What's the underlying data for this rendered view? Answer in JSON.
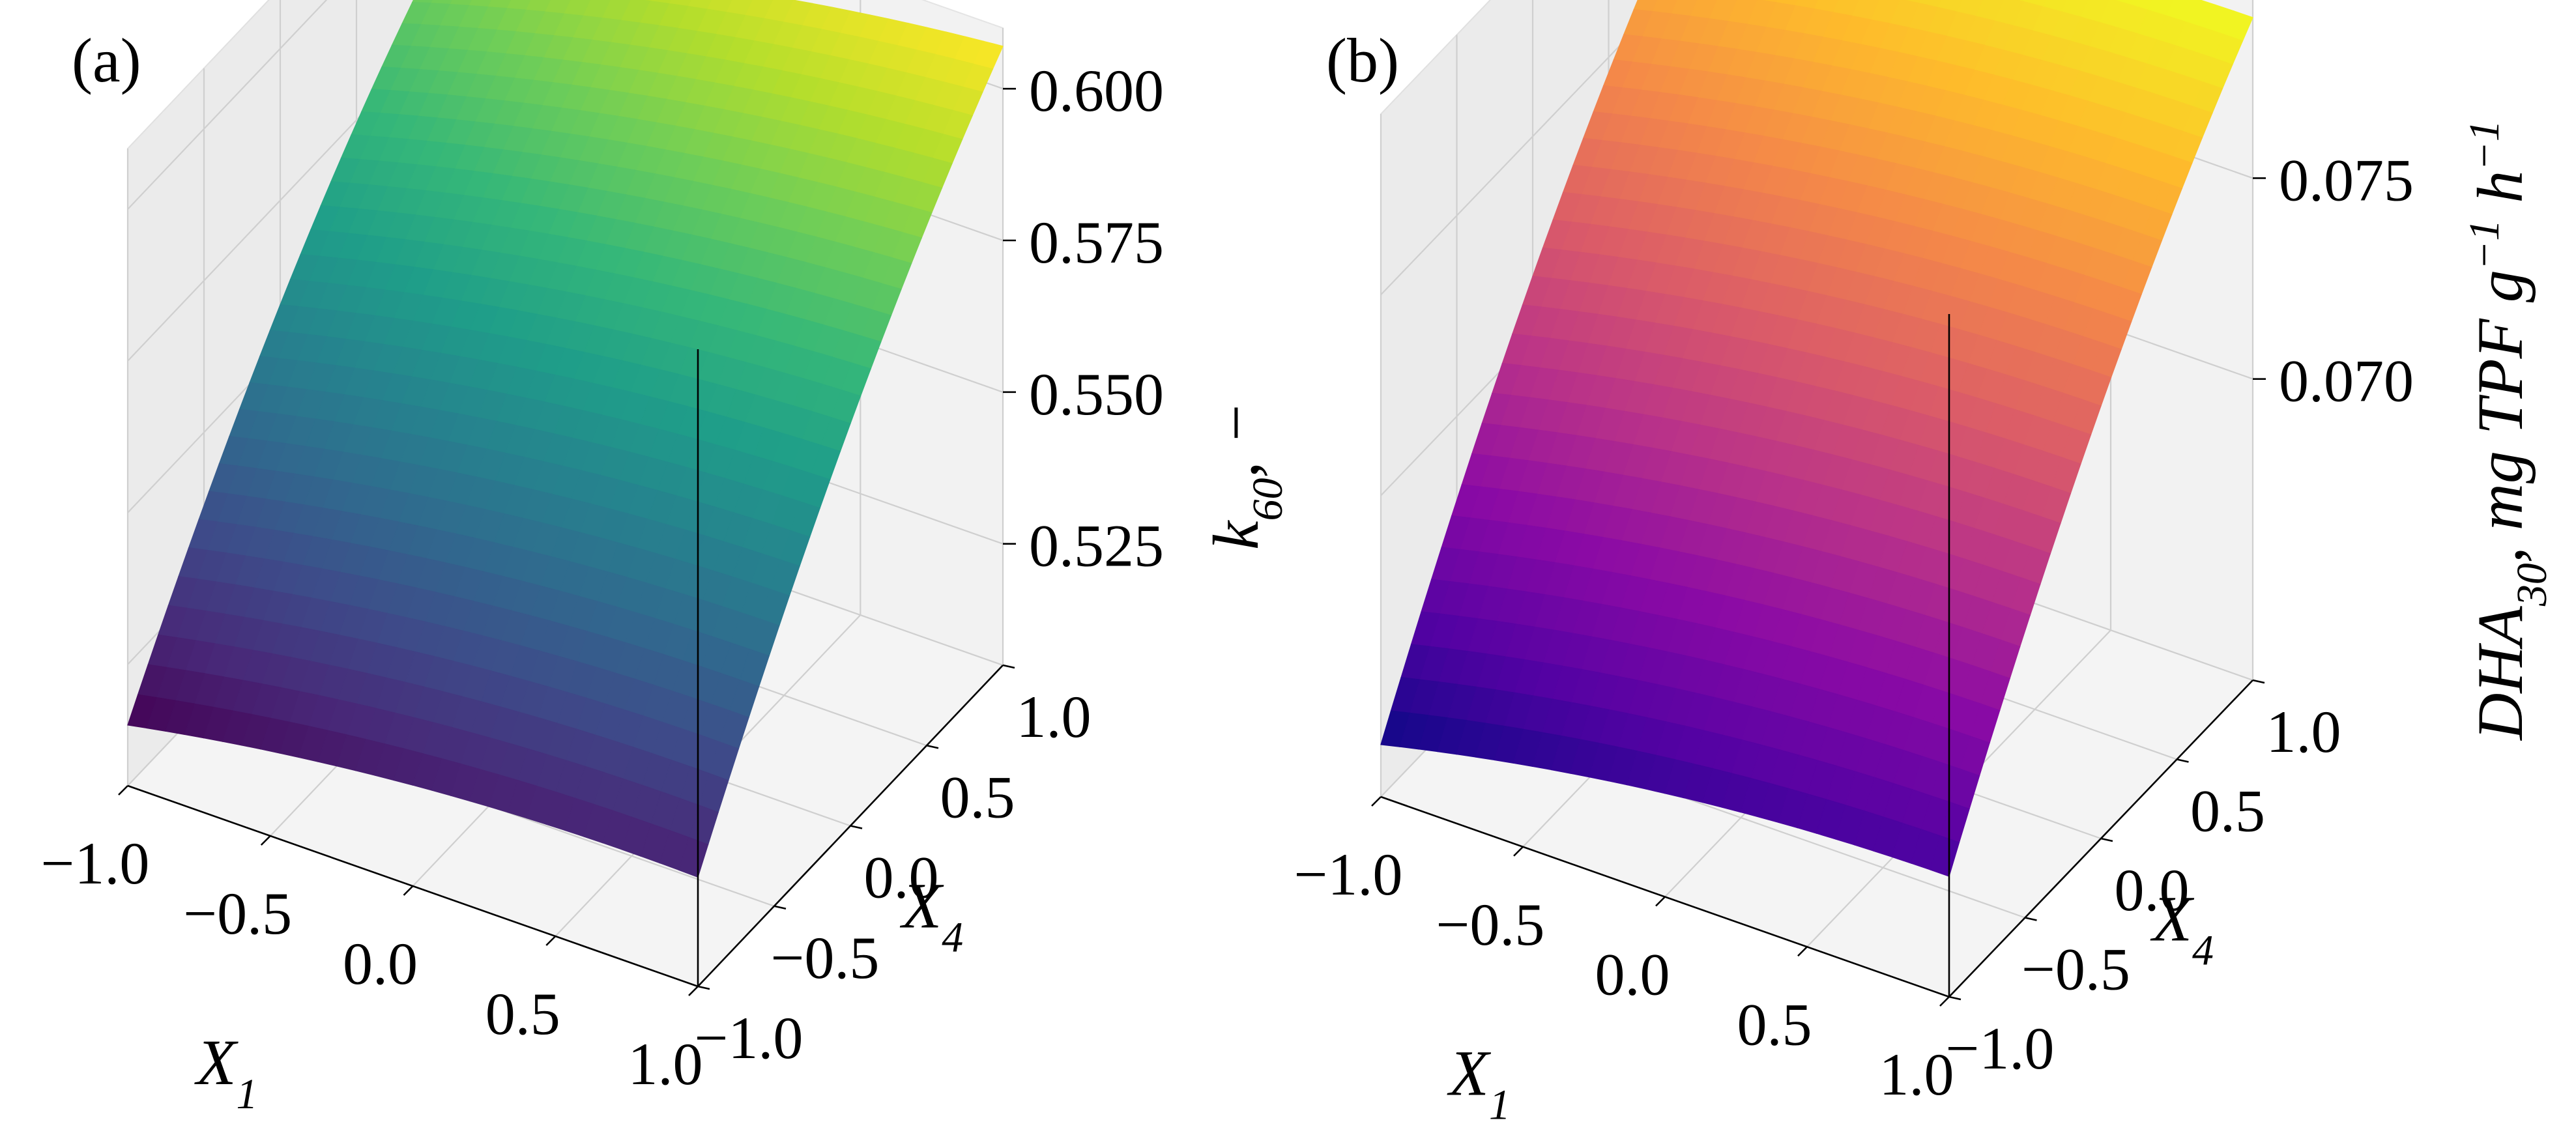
{
  "chart_data": [
    {
      "panel": "(a)",
      "type": "surface3d",
      "colormap": "viridis",
      "x_label": "X₁",
      "y_label": "X₄",
      "z_label": "k₆₀, −",
      "x_range": [
        -1.0,
        1.0
      ],
      "y_range": [
        -1.0,
        1.0
      ],
      "z_range": [
        0.505,
        0.61
      ],
      "x_ticks": [
        "−1.0",
        "−0.5",
        "0.0",
        "0.5",
        "1.0"
      ],
      "y_ticks": [
        "−1.0",
        "−0.5",
        "0.0",
        "0.5",
        "1.0"
      ],
      "z_ticks": [
        "0.525",
        "0.550",
        "0.575",
        "0.600"
      ],
      "z_tick_values": [
        0.525,
        0.55,
        0.575,
        0.6
      ],
      "corners": {
        "x-1_y-1": 0.515,
        "x1_y-1": 0.523,
        "x-1_y1": 0.588,
        "x1_y1": 0.607
      },
      "grid": true
    },
    {
      "panel": "(b)",
      "type": "surface3d",
      "colormap": "plasma",
      "x_label": "X₁",
      "y_label": "X₄",
      "z_label": "DHA₃₀, mg TPF g⁻¹ h⁻¹",
      "x_range": [
        -1.0,
        1.0
      ],
      "y_range": [
        -1.0,
        1.0
      ],
      "z_range": [
        0.0625,
        0.0795
      ],
      "x_ticks": [
        "−1.0",
        "−0.5",
        "0.0",
        "0.5",
        "1.0"
      ],
      "y_ticks": [
        "−1.0",
        "−0.5",
        "0.0",
        "0.5",
        "1.0"
      ],
      "z_ticks": [
        "0.070",
        "0.075"
      ],
      "z_tick_values": [
        0.07,
        0.075
      ],
      "corners": {
        "x-1_y-1": 0.0638,
        "x1_y-1": 0.0655,
        "x-1_y1": 0.0772,
        "x1_y1": 0.079
      },
      "grid": true
    }
  ]
}
